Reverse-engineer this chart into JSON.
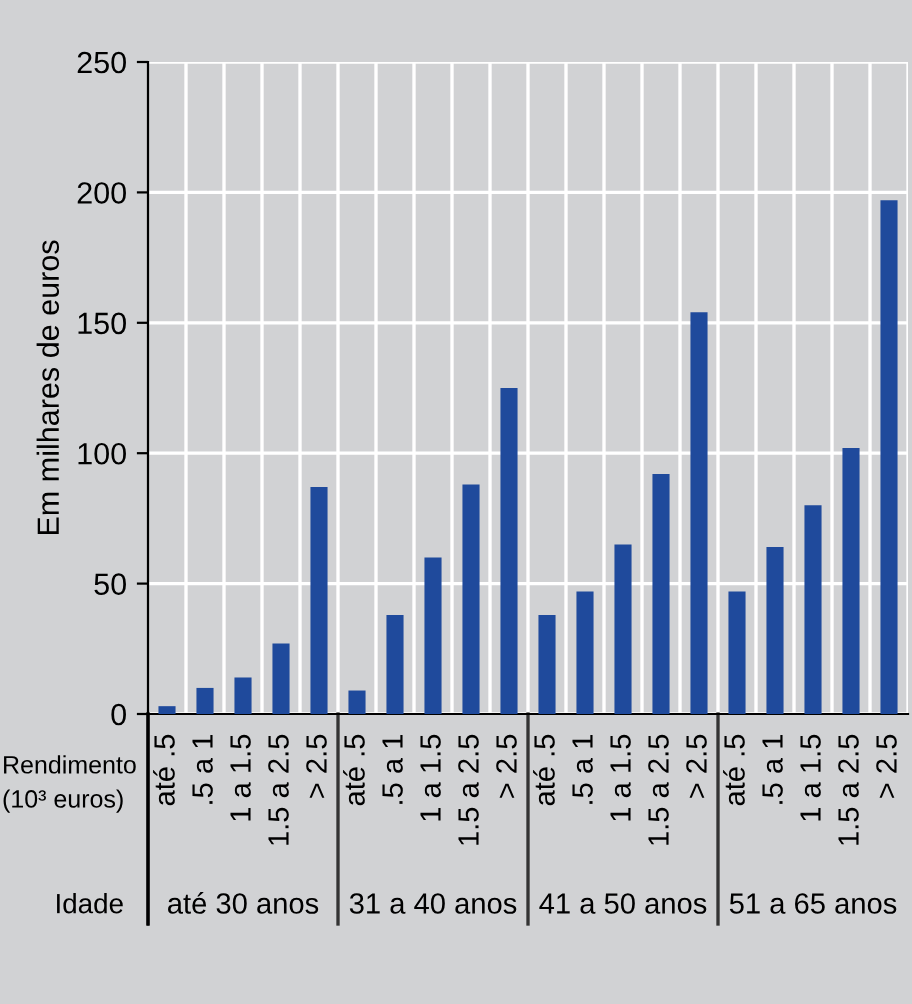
{
  "chart_data": {
    "type": "bar",
    "ylabel": "Em milhares de euros",
    "categories": [
      "até .5",
      ".5 a 1",
      "1 a 1.5",
      "1.5 a 2.5",
      "> 2.5",
      "até .5",
      ".5 a 1",
      "1 a 1.5",
      "1.5 a 2.5",
      "> 2.5",
      "até .5",
      ".5 a 1",
      "1 a 1.5",
      "1.5 a 2.5",
      "> 2.5",
      "até .5",
      ".5 a 1",
      "1 a 1.5",
      "1.5 a 2.5",
      "> 2.5"
    ],
    "values": [
      3,
      10,
      14,
      27,
      87,
      9,
      38,
      60,
      88,
      125,
      38,
      47,
      65,
      92,
      154,
      47,
      64,
      80,
      102,
      197
    ],
    "color": "#1f4a9c",
    "ylim": [
      0,
      250
    ],
    "yticks": [
      0,
      50,
      100,
      150,
      200,
      250
    ],
    "grid": true,
    "annotations": [
      "Rendimento (10³ euros)",
      "Idade",
      "até 30 anos",
      "31 a 40 anos",
      "41 a 50 anos",
      "51 a 65 anos"
    ]
  }
}
